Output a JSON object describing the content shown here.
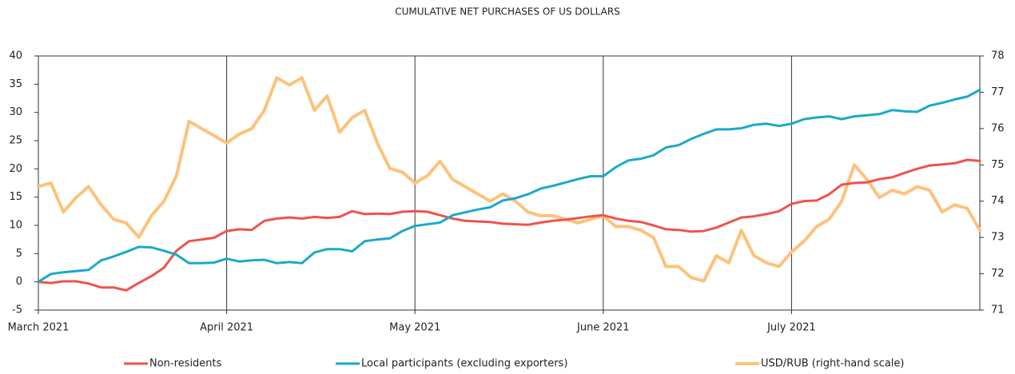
{
  "chart_data": {
    "type": "line",
    "title": "CUMULATIVE NET PURCHASES OF US DOLLARS",
    "categories": [
      "March 2021",
      null,
      null,
      null,
      null,
      null,
      null,
      null,
      null,
      null,
      null,
      null,
      null,
      null,
      null,
      "April 2021",
      null,
      null,
      null,
      null,
      null,
      null,
      null,
      null,
      null,
      null,
      null,
      null,
      null,
      null,
      "May 2021",
      null,
      null,
      null,
      null,
      null,
      null,
      null,
      null,
      null,
      null,
      null,
      null,
      null,
      null,
      "June 2021",
      null,
      null,
      null,
      null,
      null,
      null,
      null,
      null,
      null,
      null,
      null,
      null,
      null,
      null,
      "July 2021",
      null,
      null,
      null,
      null,
      null,
      null,
      null,
      null,
      null,
      null,
      null,
      null,
      null,
      null,
      null
    ],
    "ylim": [
      -5,
      40
    ],
    "yticks": [
      -5,
      0,
      5,
      10,
      15,
      20,
      25,
      30,
      35,
      40
    ],
    "y2lim": [
      71,
      78
    ],
    "y2ticks": [
      71,
      72,
      73,
      74,
      75,
      76,
      77,
      78
    ],
    "legend": "bottom",
    "grid": false,
    "series": [
      {
        "name": "Non-residents",
        "color": "#f0524c",
        "values": [
          0,
          -0.2,
          0.1,
          0.1,
          -0.3,
          -1,
          -1,
          -1.5,
          -0.2,
          1,
          2.5,
          5.5,
          7.2,
          7.5,
          7.8,
          9,
          9.3,
          9.2,
          10.8,
          11.2,
          11.4,
          11.2,
          11.5,
          11.3,
          11.5,
          12.5,
          12,
          12.1,
          12,
          12.4,
          12.5,
          12.4,
          11.8,
          11.2,
          10.8,
          10.7,
          10.6,
          10.3,
          10.2,
          10.1,
          10.5,
          10.8,
          11,
          11.3,
          11.6,
          11.8,
          11.2,
          10.8,
          10.6,
          10,
          9.3,
          9.2,
          8.9,
          9,
          9.6,
          10.5,
          11.4,
          11.6,
          12,
          12.5,
          13.8,
          14.3,
          14.4,
          15.5,
          17.2,
          17.5,
          17.6,
          18.2,
          18.5,
          19.3,
          20,
          20.6,
          20.8,
          21,
          21.6,
          21.4
        ]
      },
      {
        "name": "Local participants (excluding exporters)",
        "color": "#1ba9c9",
        "values": [
          0,
          1.4,
          1.7,
          1.9,
          2.1,
          3.8,
          4.5,
          5.3,
          6.2,
          6.1,
          5.5,
          4.8,
          3.3,
          3.3,
          3.4,
          4.1,
          3.6,
          3.8,
          3.9,
          3.3,
          3.5,
          3.3,
          5.2,
          5.8,
          5.8,
          5.4,
          7.2,
          7.5,
          7.7,
          9,
          9.9,
          10.2,
          10.5,
          11.8,
          12.3,
          12.8,
          13.2,
          14.4,
          14.8,
          15.5,
          16.5,
          17,
          17.6,
          18.2,
          18.7,
          18.7,
          20.3,
          21.5,
          21.8,
          22.4,
          23.8,
          24.2,
          25.3,
          26.2,
          27,
          27,
          27.2,
          27.8,
          28,
          27.6,
          28,
          28.8,
          29.1,
          29.3,
          28.8,
          29.3,
          29.5,
          29.7,
          30.4,
          30.2,
          30.1,
          31.2,
          31.7,
          32.3,
          32.8,
          34
        ]
      },
      {
        "name": "USD/RUB (right-hand scale)",
        "color": "#fdc27a",
        "axis": "y2",
        "values": [
          74.4,
          74.5,
          73.7,
          74.1,
          74.4,
          73.9,
          73.5,
          73.4,
          73.0,
          73.6,
          74.0,
          74.7,
          76.2,
          76.0,
          75.8,
          75.6,
          75.85,
          76.0,
          76.5,
          77.4,
          77.2,
          77.4,
          76.5,
          76.9,
          75.9,
          76.3,
          76.5,
          75.6,
          74.9,
          74.8,
          74.5,
          74.7,
          75.1,
          74.6,
          74.4,
          74.2,
          74.0,
          74.2,
          74.0,
          73.7,
          73.6,
          73.6,
          73.5,
          73.4,
          73.5,
          73.6,
          73.3,
          73.3,
          73.2,
          73.0,
          72.2,
          72.2,
          71.9,
          71.8,
          72.5,
          72.3,
          73.2,
          72.5,
          72.3,
          72.2,
          72.6,
          72.9,
          73.3,
          73.5,
          74.0,
          75.0,
          74.6,
          74.1,
          74.3,
          74.2,
          74.4,
          74.3,
          73.7,
          73.9,
          73.8,
          73.2
        ]
      }
    ]
  }
}
